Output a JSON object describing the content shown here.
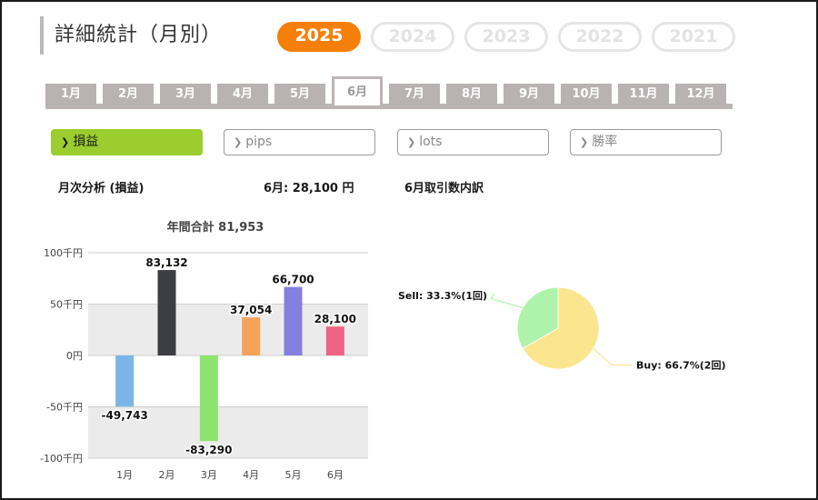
{
  "header": {
    "title": "詳細統計（月別）"
  },
  "years": [
    {
      "label": "2025",
      "active": true
    },
    {
      "label": "2024",
      "active": false
    },
    {
      "label": "2023",
      "active": false
    },
    {
      "label": "2022",
      "active": false
    },
    {
      "label": "2021",
      "active": false
    }
  ],
  "months": [
    "1月",
    "2月",
    "3月",
    "4月",
    "5月",
    "6月",
    "7月",
    "8月",
    "9月",
    "10月",
    "11月",
    "12月"
  ],
  "active_month_index": 5,
  "filters": [
    {
      "label": "損益",
      "active": true
    },
    {
      "label": "pips",
      "active": false
    },
    {
      "label": "lots",
      "active": false
    },
    {
      "label": "勝率",
      "active": false
    }
  ],
  "summary": {
    "analysis_label": "月次分析 (損益)",
    "month_total": "6月:  28,100 円",
    "breakdown_label": "6月取引数内訳"
  },
  "colors": {
    "accent": "#f57f08",
    "filter_active": "#9acd2d",
    "tab": "#b9b2b2"
  },
  "chart_data": [
    {
      "type": "bar",
      "title": "年間合計 81,953",
      "categories": [
        "1月",
        "2月",
        "3月",
        "4月",
        "5月",
        "6月"
      ],
      "values": [
        -49743,
        83132,
        -83290,
        37054,
        66700,
        28100
      ],
      "value_labels": [
        "-49,743",
        "83,132",
        "-83,290",
        "37,054",
        "66,700",
        "28,100"
      ],
      "bar_colors": [
        "#7cb4e8",
        "#3d3d44",
        "#8ee36e",
        "#f6a35a",
        "#8380e0",
        "#f06383"
      ],
      "ylim": [
        -100000,
        100000
      ],
      "yticks": [
        100000,
        50000,
        0,
        -50000,
        -100000
      ],
      "ytick_labels": [
        "100千円",
        "50千円",
        "0円",
        "-50千円",
        "-100千円"
      ],
      "grid": true
    },
    {
      "type": "pie",
      "slices": [
        {
          "label": "Sell: 33.3%(1回)",
          "value": 33.3,
          "color": "#aef3aa"
        },
        {
          "label": "Buy: 66.7%(2回)",
          "value": 66.7,
          "color": "#fbe68f"
        }
      ]
    }
  ]
}
